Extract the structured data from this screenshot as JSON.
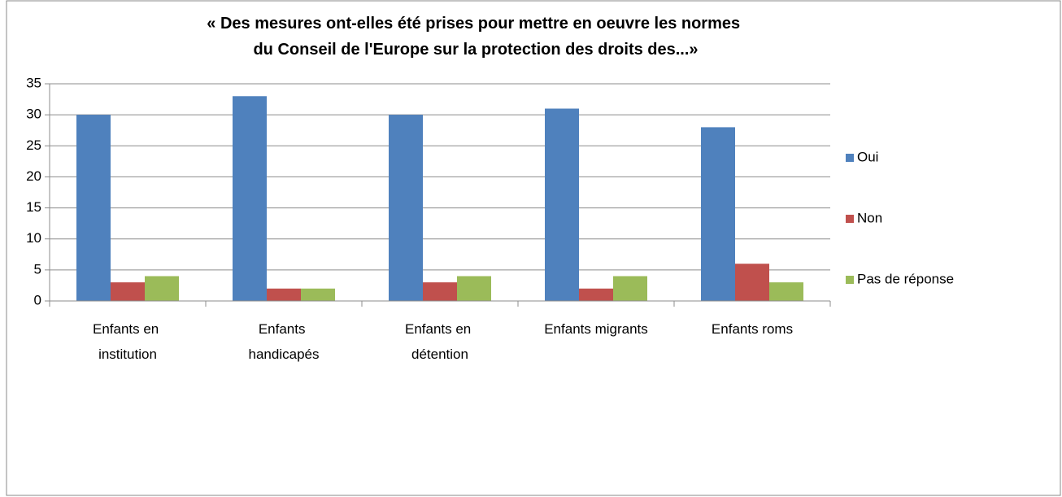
{
  "chart_data": {
    "type": "bar",
    "title": "« Des mesures ont-elles été prises pour mettre en oeuvre les normes du Conseil de l'Europe sur la protection des droits des...»",
    "categories": [
      "Enfants en institution",
      "Enfants handicapés",
      "Enfants en détention",
      "Enfants migrants",
      "Enfants roms"
    ],
    "series": [
      {
        "name": "Oui",
        "color": "#4f81bd",
        "values": [
          30,
          33,
          30,
          31,
          28
        ]
      },
      {
        "name": "Non",
        "color": "#c0504d",
        "values": [
          3,
          2,
          3,
          2,
          6
        ]
      },
      {
        "name": "Pas de réponse",
        "color": "#9bbb59",
        "values": [
          4,
          2,
          4,
          4,
          3
        ]
      }
    ],
    "ylim": [
      0,
      35
    ],
    "yticks": [
      0,
      5,
      10,
      15,
      20,
      25,
      30,
      35
    ],
    "grid": true,
    "legend": "right"
  }
}
